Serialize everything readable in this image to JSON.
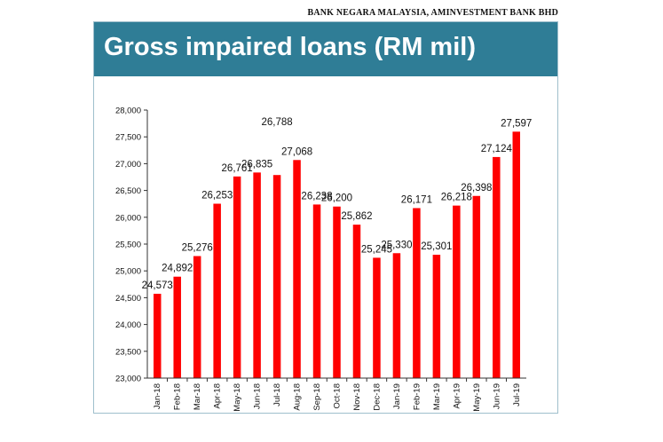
{
  "source": "BANK NEGARA MALAYSIA, AMINVESTMENT BANK BHD",
  "title": "Gross impaired loans (RM mil)",
  "colors": {
    "bar": "#ff0000",
    "title_bg": "#2f7d96",
    "frame": "#9fbfcc"
  },
  "chart_data": {
    "type": "bar",
    "title": "Gross impaired loans (RM mil)",
    "xlabel": "",
    "ylabel": "",
    "ylim": [
      23000,
      28000
    ],
    "yticks": [
      23000,
      23500,
      24000,
      24500,
      25000,
      25500,
      26000,
      26500,
      27000,
      27500,
      28000
    ],
    "ytick_labels": [
      "23,000",
      "23,500",
      "24,000",
      "24,500",
      "25,000",
      "25,500",
      "26,000",
      "26,500",
      "27,000",
      "27,500",
      "28,000"
    ],
    "grid": false,
    "categories": [
      "Jan-18",
      "Feb-18",
      "Mar-18",
      "Apr-18",
      "May-18",
      "Jun-18",
      "Jul-18",
      "Aug-18",
      "Sep-18",
      "Oct-18",
      "Nov-18",
      "Dec-18",
      "Jan-19",
      "Feb-19",
      "Mar-19",
      "Apr-19",
      "May-19",
      "Jun-19",
      "Jul-19"
    ],
    "values": [
      24573,
      24892,
      25276,
      26253,
      26761,
      26835,
      26788,
      27068,
      26238,
      26200,
      25862,
      25245,
      25330,
      26171,
      25301,
      26218,
      26398,
      27124,
      27597
    ],
    "data_labels": [
      "24,573",
      "24,892",
      "25,276",
      "26,253",
      "26,761",
      "26,835",
      "26,788",
      "27,068",
      "26,238",
      "26,200",
      "25,862",
      "25,245",
      "25,330",
      "26,171",
      "25,301",
      "26,218",
      "26,398",
      "27,124",
      "27,597"
    ]
  }
}
